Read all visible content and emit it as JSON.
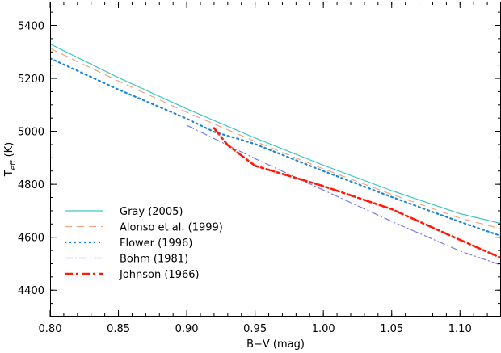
{
  "chart_data": {
    "type": "line",
    "xlabel": "B−V (mag)",
    "ylabel": {
      "main": "T",
      "sub": "eff",
      "unit": " (K)"
    },
    "xlim": [
      0.8,
      1.13
    ],
    "ylim": [
      4300,
      5490
    ],
    "xticks": [
      0.8,
      0.85,
      0.9,
      0.95,
      1.0,
      1.05,
      1.1
    ],
    "xtick_labels": [
      "0.80",
      "0.85",
      "0.90",
      "0.95",
      "1.00",
      "1.05",
      "1.10"
    ],
    "yticks": [
      4400,
      4600,
      4800,
      5000,
      5200,
      5400
    ],
    "ytick_labels": [
      "4400",
      "4600",
      "4800",
      "5000",
      "5200",
      "5400"
    ],
    "legend_position": "bottom-left",
    "grid": false,
    "series": [
      {
        "name": "Gray (2005)",
        "color": "#3cc8c4",
        "dash": "",
        "width": 1.2,
        "x": [
          0.8,
          0.85,
          0.9,
          0.95,
          1.0,
          1.05,
          1.1,
          1.13
        ],
        "y": [
          5330,
          5203,
          5085,
          4975,
          4872,
          4776,
          4689,
          4652
        ]
      },
      {
        "name": "Alonso et al. (1999)",
        "color": "#f0a47a",
        "dash": "9,6",
        "width": 1.2,
        "x": [
          0.8,
          0.85,
          0.9,
          0.95,
          1.0,
          1.05,
          1.1,
          1.13
        ],
        "y": [
          5313,
          5190,
          5072,
          4962,
          4858,
          4762,
          4672,
          4632
        ]
      },
      {
        "name": "Flower (1996)",
        "color": "#1f87d8",
        "dash": "2,4",
        "width": 2.2,
        "x": [
          0.8,
          0.85,
          0.9,
          0.92,
          0.94,
          0.95,
          1.0,
          1.05,
          1.1,
          1.13
        ],
        "y": [
          5276,
          5158,
          5048,
          4998,
          4968,
          4952,
          4850,
          4752,
          4658,
          4605
        ]
      },
      {
        "name": "Bohm (1981)",
        "color": "#7b78e8",
        "dash": "10,3,2,3",
        "width": 1.2,
        "x": [
          0.9,
          0.95,
          1.0,
          1.05,
          1.1,
          1.13
        ],
        "y": [
          5023,
          4897,
          4778,
          4660,
          4548,
          4495
        ]
      },
      {
        "name": "Johnson (1966)",
        "color": "#ff1a0a",
        "dash": "10,4,3,4",
        "width": 2.6,
        "x": [
          0.92,
          0.93,
          0.95,
          1.0,
          1.05,
          1.1,
          1.13
        ],
        "y": [
          5012,
          4948,
          4870,
          4793,
          4706,
          4590,
          4522
        ]
      }
    ]
  }
}
